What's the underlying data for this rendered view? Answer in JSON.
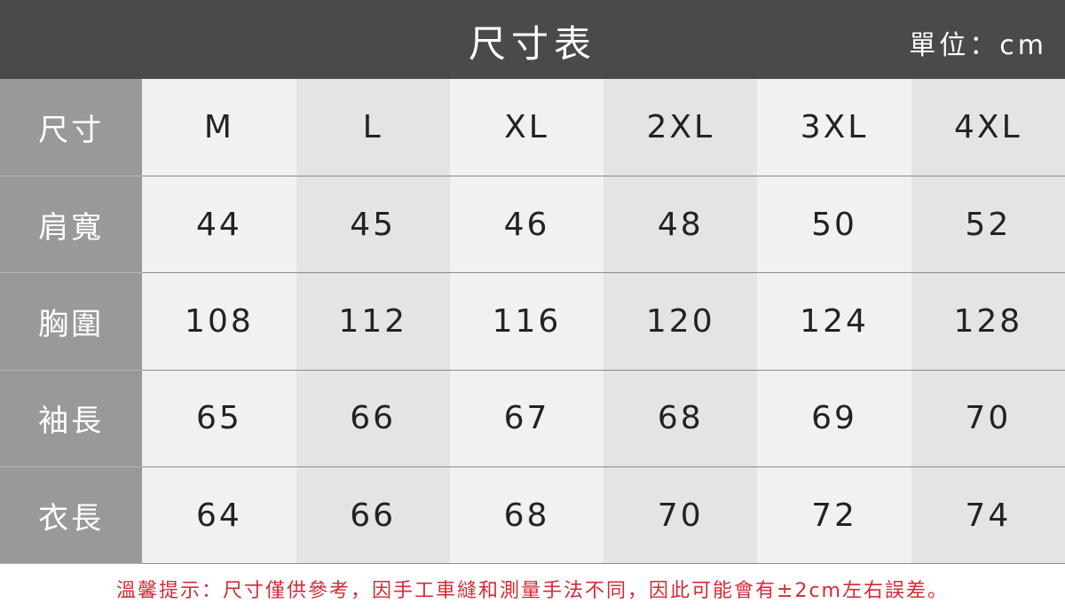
{
  "header": {
    "title": "尺寸表",
    "unit": "單位：cm"
  },
  "table": {
    "header_label": "尺寸",
    "sizes": [
      "M",
      "L",
      "XL",
      "2XL",
      "3XL",
      "4XL"
    ],
    "rows": [
      {
        "label": "肩寬",
        "values": [
          "44",
          "45",
          "46",
          "48",
          "50",
          "52"
        ]
      },
      {
        "label": "胸圍",
        "values": [
          "108",
          "112",
          "116",
          "120",
          "124",
          "128"
        ]
      },
      {
        "label": "袖長",
        "values": [
          "65",
          "66",
          "67",
          "68",
          "69",
          "70"
        ]
      },
      {
        "label": "衣長",
        "values": [
          "64",
          "66",
          "68",
          "70",
          "72",
          "74"
        ]
      }
    ]
  },
  "note": "溫馨提示：尺寸僅供參考，因手工車縫和測量手法不同，因此可能會有±2cm左右誤差。",
  "colors": {
    "header_bg": "#4a4a4a",
    "label_bg": "#999999",
    "note": "#d42a35"
  }
}
